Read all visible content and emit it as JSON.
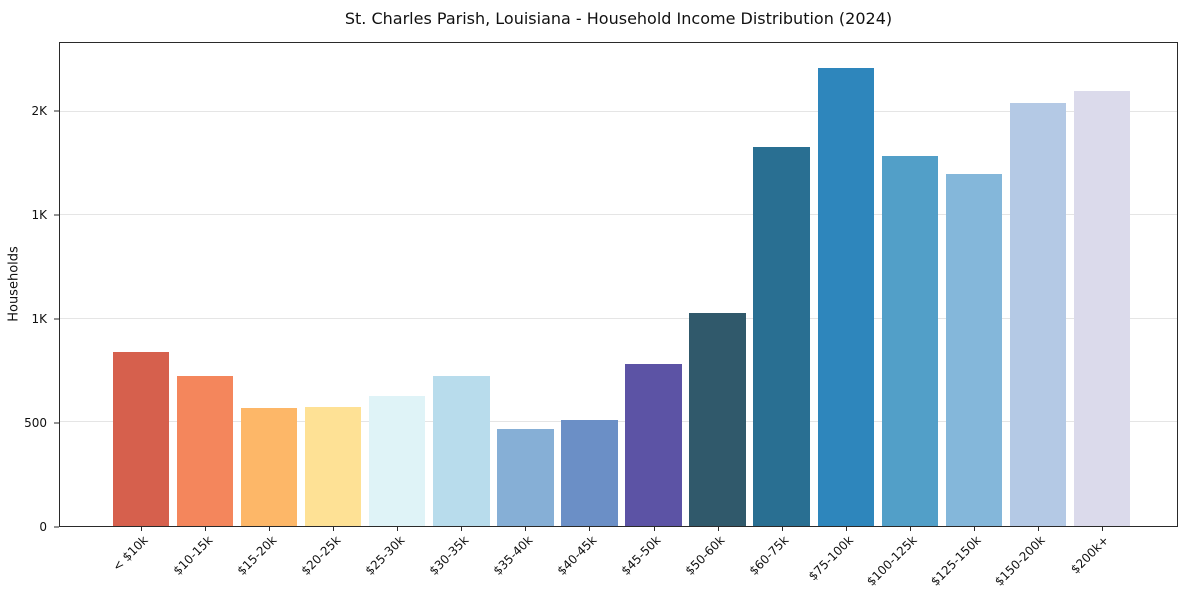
{
  "figure": {
    "title": "St. Charles Parish, Louisiana - Household Income Distribution (2024)"
  },
  "chart_data": {
    "type": "bar",
    "title": "St. Charles Parish, Louisiana - Household Income Distribution (2024)",
    "xlabel": "",
    "ylabel": "Households",
    "categories": [
      "< $10k",
      "$10-15k",
      "$15-20k",
      "$20-25k",
      "$25-30k",
      "$30-35k",
      "$35-40k",
      "$40-45k",
      "$45-50k",
      "$50-60k",
      "$60-75k",
      "$75-100k",
      "$100-125k",
      "$125-150k",
      "$150-200k",
      "$200k+"
    ],
    "values": [
      840,
      725,
      570,
      575,
      630,
      725,
      470,
      510,
      780,
      1030,
      1830,
      2210,
      1785,
      1700,
      2040,
      2100
    ],
    "bar_colors": [
      "#d6604d",
      "#f4865c",
      "#fdb768",
      "#fee195",
      "#dff3f7",
      "#b8dcec",
      "#86afd6",
      "#6b8fc6",
      "#5c53a5",
      "#30596b",
      "#296f92",
      "#2e86bc",
      "#529fc8",
      "#84b7da",
      "#b4c9e5",
      "#dbdaeb"
    ],
    "ylim": [
      0,
      2332
    ],
    "yticks": [
      {
        "value": 0,
        "label": "0"
      },
      {
        "value": 500,
        "label": "500"
      },
      {
        "value": 1000,
        "label": "1K"
      },
      {
        "value": 1500,
        "label": "1K"
      },
      {
        "value": 2000,
        "label": "2K"
      }
    ],
    "grid": "horizontal",
    "gridline_color": "#e5e5e5",
    "axis_color": "#2a2a2a",
    "background": "#ffffff",
    "legend_position": "none"
  }
}
